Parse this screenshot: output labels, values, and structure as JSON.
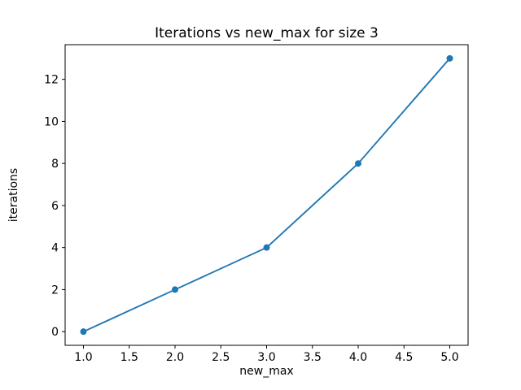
{
  "chart_data": {
    "type": "line",
    "title": "Iterations vs new_max for size 3",
    "xlabel": "new_max",
    "ylabel": "iterations",
    "x": [
      1,
      2,
      3,
      4,
      5
    ],
    "series": [
      {
        "name": "iterations",
        "values": [
          0,
          2,
          4,
          8,
          13
        ]
      }
    ],
    "xlim": [
      0.8,
      5.2
    ],
    "ylim": [
      -0.65,
      13.65
    ],
    "xticks": [
      1.0,
      1.5,
      2.0,
      2.5,
      3.0,
      3.5,
      4.0,
      4.5,
      5.0
    ],
    "xtick_labels": [
      "1.0",
      "1.5",
      "2.0",
      "2.5",
      "3.0",
      "3.5",
      "4.0",
      "4.5",
      "5.0"
    ],
    "yticks": [
      0,
      2,
      4,
      6,
      8,
      10,
      12
    ],
    "ytick_labels": [
      "0",
      "2",
      "4",
      "6",
      "8",
      "10",
      "12"
    ],
    "grid": false,
    "legend": "none",
    "line_color": "#1f77b4",
    "marker": "circle",
    "axis_color": "#000000",
    "background": "#ffffff"
  }
}
